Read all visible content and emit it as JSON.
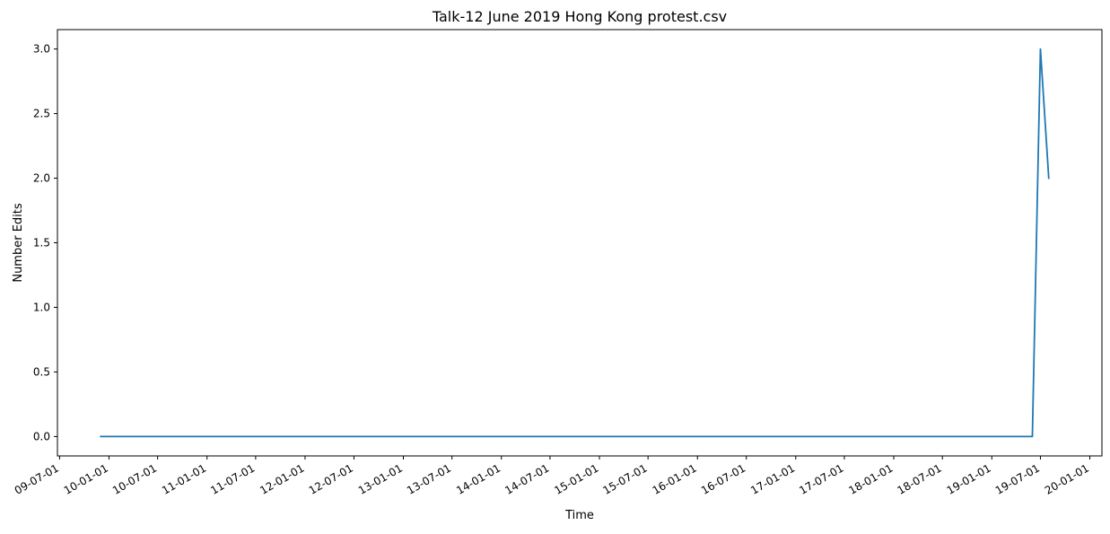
{
  "chart_data": {
    "type": "line",
    "title": "Talk-12 June 2019 Hong Kong protest.csv",
    "xlabel": "Time",
    "ylabel": "Number Edits",
    "grid": false,
    "legend": "none",
    "xlim": [
      "2009-06-23",
      "2020-02-15"
    ],
    "ylim": [
      -0.15,
      3.15
    ],
    "x_tick_values": [
      "2009-07-01",
      "2010-01-01",
      "2010-07-01",
      "2011-01-01",
      "2011-07-01",
      "2012-01-01",
      "2012-07-01",
      "2013-01-01",
      "2013-07-01",
      "2014-01-01",
      "2014-07-01",
      "2015-01-01",
      "2015-07-01",
      "2016-01-01",
      "2016-07-01",
      "2017-01-01",
      "2017-07-01",
      "2018-01-01",
      "2018-07-01",
      "2019-01-01",
      "2019-07-01",
      "2020-01-01"
    ],
    "x_tick_labels": [
      "09-07-01",
      "10-01-01",
      "10-07-01",
      "11-01-01",
      "11-07-01",
      "12-01-01",
      "12-07-01",
      "13-01-01",
      "13-07-01",
      "14-01-01",
      "14-07-01",
      "15-01-01",
      "15-07-01",
      "16-01-01",
      "16-07-01",
      "17-01-01",
      "17-07-01",
      "18-01-01",
      "18-07-01",
      "19-01-01",
      "19-07-01",
      "20-01-01"
    ],
    "y_tick_values": [
      0,
      0.5,
      1,
      1.5,
      2,
      2.5,
      3
    ],
    "y_tick_labels": [
      "0.0",
      "0.5",
      "1.0",
      "1.5",
      "2.0",
      "2.5",
      "3.0"
    ],
    "series": [
      {
        "color": "#1f77b4",
        "x": [
          "2009-12-01",
          "2019-06-01",
          "2019-07-01",
          "2019-08-01"
        ],
        "y": [
          0,
          0,
          3,
          2
        ]
      }
    ]
  }
}
